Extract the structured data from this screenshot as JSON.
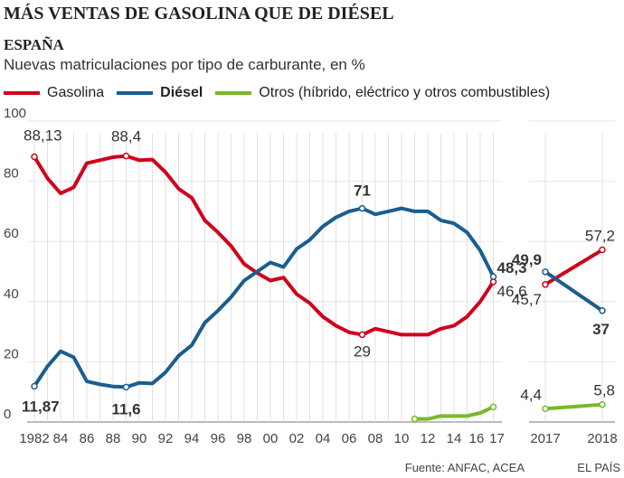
{
  "title": "MÁS VENTAS DE GASOLINA QUE DE DIÉSEL",
  "subtitle": "ESPAÑA",
  "description": "Nuevas matriculaciones por tipo de carburante, en %",
  "source": "Fuente: ANFAC, ACEA",
  "brand": "EL PAÍS",
  "chart_data": [
    {
      "type": "line",
      "ylim": [
        0,
        100
      ],
      "yticks": [
        0,
        20,
        40,
        60,
        80,
        100
      ],
      "grid": true,
      "x": [
        1982,
        1983,
        1984,
        1985,
        1986,
        1987,
        1988,
        1989,
        1990,
        1991,
        1992,
        1993,
        1994,
        1995,
        1996,
        1997,
        1998,
        1999,
        2000,
        2001,
        2002,
        2003,
        2004,
        2005,
        2006,
        2007,
        2008,
        2009,
        2010,
        2011,
        2012,
        2013,
        2014,
        2015,
        2016,
        2017
      ],
      "xtick_labels": [
        "1982",
        "84",
        "86",
        "88",
        "90",
        "92",
        "94",
        "96",
        "98",
        "00",
        "02",
        "04",
        "06",
        "08",
        "10",
        "12",
        "14",
        "16",
        "17"
      ],
      "series": [
        {
          "name": "Gasolina",
          "color": "#d0021b",
          "values": [
            88.13,
            81,
            76,
            78,
            86,
            87,
            88,
            88.4,
            87,
            87.2,
            83,
            77.5,
            74.5,
            67,
            63,
            58.5,
            52.5,
            49.5,
            47,
            48,
            42.5,
            39.5,
            35,
            32,
            29.8,
            29,
            31,
            30,
            29,
            29,
            29,
            31,
            32,
            35,
            40,
            46.6
          ]
        },
        {
          "name": "Diésel",
          "color": "#1a5e8e",
          "values": [
            11.87,
            18.5,
            23.5,
            21.5,
            13.5,
            12.5,
            11.8,
            11.6,
            13,
            12.8,
            16.5,
            22,
            25.5,
            33,
            37,
            41.5,
            47,
            50,
            53,
            51.5,
            57.5,
            60.5,
            65,
            68,
            70,
            71,
            69,
            70,
            71,
            70,
            70,
            67,
            66,
            63,
            57,
            48.3
          ]
        },
        {
          "name": "Otros (híbrido, eléctrico y otros combustibles)",
          "color": "#7ab929",
          "values": [
            null,
            null,
            null,
            null,
            null,
            null,
            null,
            null,
            null,
            null,
            null,
            null,
            null,
            null,
            null,
            null,
            null,
            null,
            null,
            null,
            null,
            null,
            null,
            null,
            null,
            null,
            null,
            null,
            null,
            1,
            1,
            2,
            2,
            2,
            3,
            5
          ]
        }
      ],
      "annotations": [
        {
          "series": 0,
          "x": 1982,
          "label": "88,13"
        },
        {
          "series": 0,
          "x": 1989,
          "label": "88,4"
        },
        {
          "series": 0,
          "x": 2007,
          "label": "29"
        },
        {
          "series": 0,
          "x": 2017,
          "label": "46,6"
        },
        {
          "series": 1,
          "x": 1982,
          "label": "11,87"
        },
        {
          "series": 1,
          "x": 1989,
          "label": "11,6"
        },
        {
          "series": 1,
          "x": 2007,
          "label": "71"
        },
        {
          "series": 1,
          "x": 2017,
          "label": "48,3"
        }
      ]
    },
    {
      "type": "line",
      "ylim": [
        0,
        100
      ],
      "categories": [
        "2017",
        "2018"
      ],
      "series": [
        {
          "name": "Gasolina",
          "values": [
            45.7,
            57.2
          ],
          "labels": [
            "45,7",
            "57,2"
          ]
        },
        {
          "name": "Diésel",
          "values": [
            49.9,
            37
          ],
          "labels": [
            "49,9",
            "37"
          ]
        },
        {
          "name": "Otros",
          "values": [
            4.4,
            5.8
          ],
          "labels": [
            "4,4",
            "5,8"
          ]
        }
      ]
    }
  ]
}
